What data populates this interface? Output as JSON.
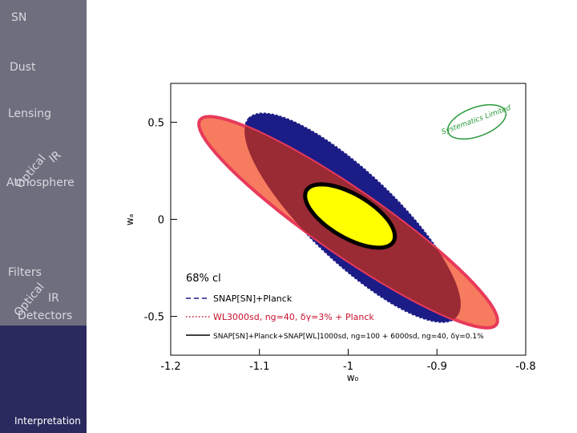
{
  "sidebar": {
    "items": [
      "SN",
      "Dust",
      "Lensing",
      "Optical",
      "IR",
      "Atmosphere",
      "Filters",
      "Optical",
      "IR",
      "Detectors",
      "Interpretation"
    ]
  },
  "chart_data": {
    "type": "ellipse",
    "xlabel": "w₀",
    "ylabel": "wₐ",
    "xlim": [
      -1.2,
      -0.8
    ],
    "xticks": [
      -1.2,
      -1.1,
      -1,
      -0.9,
      -0.8
    ],
    "ylim": [
      -0.7,
      0.7
    ],
    "yticks": [
      0.5,
      0,
      -0.5
    ],
    "annotation": "68% cl",
    "logo": "Systematics Limited",
    "series": [
      {
        "name": "SNAP[SN]+Planck",
        "color": "#1c1c86",
        "dash": "dashed",
        "center": [
          -0.995,
          0.008
        ],
        "major": [
          -0.117,
          0.512
        ],
        "minor": [
          0.034,
          0.164
        ]
      },
      {
        "name": "WL3000sd, ng=40, δγ=3% + Planck",
        "color": "#f77b5e",
        "dash": "dotted",
        "center": [
          -1.0,
          -0.015
        ],
        "major": [
          -0.167,
          0.527
        ],
        "minor": [
          0.021,
          0.136
        ]
      },
      {
        "name": "SNAP[SN]+Planck+SNAP[WL]1000sd, ng=100 + 6000sd, ng=40, δγ=0.1%",
        "color": "#ffff00",
        "dash": "solid",
        "center": [
          -0.998,
          0.017
        ],
        "major": [
          -0.049,
          0.132
        ],
        "minor": [
          0.0125,
          0.096
        ]
      }
    ]
  }
}
